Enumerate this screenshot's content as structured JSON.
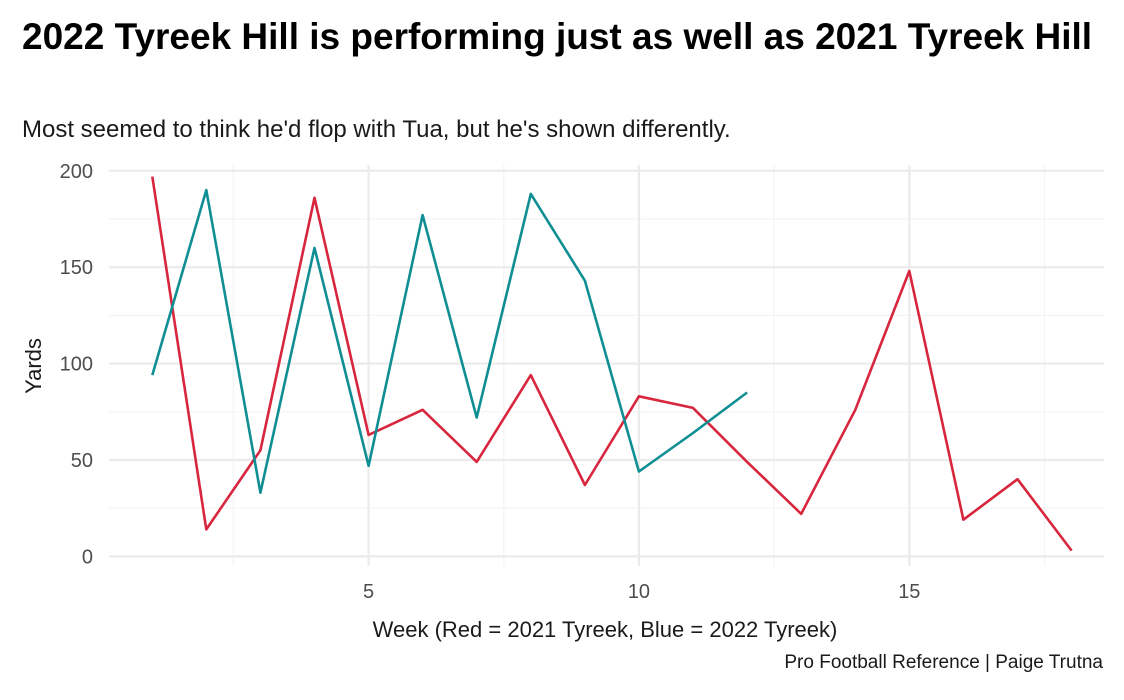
{
  "chart_data": {
    "type": "line",
    "title": "2022 Tyreek Hill is performing just as well as 2021 Tyreek Hill",
    "subtitle": "Most seemed to think he'd flop with Tua, but he's shown differently.",
    "caption": "Pro Football Reference | Paige Trutna",
    "xlabel": "Week (Red = 2021 Tyreek, Blue = 2022 Tyreek)",
    "ylabel": "Yards",
    "xlim": [
      0.2,
      18.6
    ],
    "ylim": [
      -5,
      203
    ],
    "x_ticks": [
      5,
      10,
      15
    ],
    "y_ticks": [
      0,
      50,
      100,
      150,
      200
    ],
    "grid": true,
    "series": [
      {
        "color": "#D7263D",
        "x": [
          1,
          2,
          3,
          4,
          5,
          6,
          7,
          8,
          9,
          10,
          11,
          12,
          13,
          14,
          15,
          16,
          17,
          18
        ],
        "values": [
          197,
          14,
          55,
          186,
          63,
          76,
          49,
          94,
          37,
          83,
          77,
          49,
          22,
          76,
          148,
          19,
          40,
          3
        ]
      },
      {
        "color": "#0F8E94",
        "x": [
          1,
          2,
          3,
          4,
          5,
          6,
          7,
          8,
          9,
          10,
          11,
          12
        ],
        "values": [
          94,
          190,
          33,
          160,
          47,
          177,
          72,
          188,
          143,
          44,
          64,
          85
        ]
      }
    ]
  }
}
